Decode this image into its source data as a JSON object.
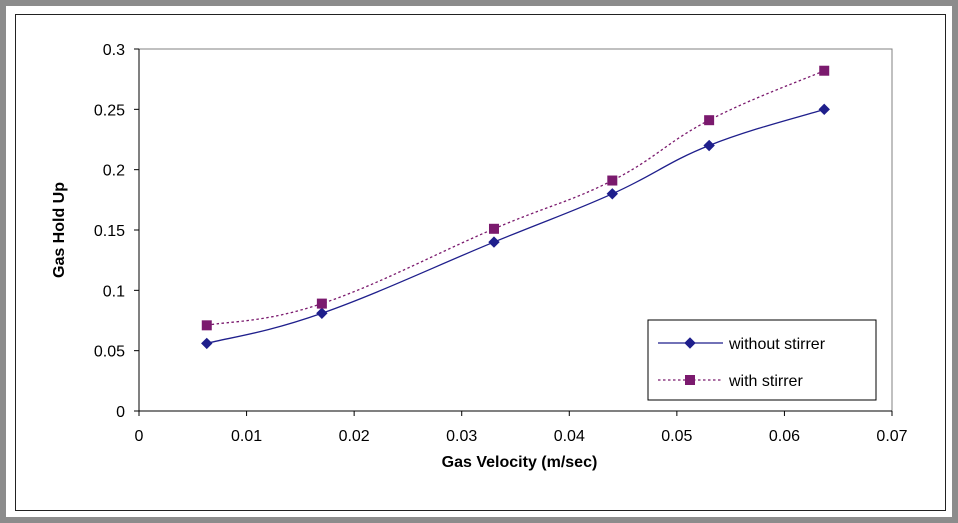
{
  "chart_data": {
    "type": "line",
    "title": "",
    "xlabel": "Gas Velocity (m/sec)",
    "ylabel": "Gas Hold Up",
    "xlim": [
      0,
      0.07
    ],
    "ylim": [
      0,
      0.3
    ],
    "xticks": [
      "0",
      "0.01",
      "0.02",
      "0.03",
      "0.04",
      "0.05",
      "0.06",
      "0.07"
    ],
    "yticks": [
      "0",
      "0.05",
      "0.1",
      "0.15",
      "0.2",
      "0.25",
      "0.3"
    ],
    "grid": false,
    "legend_position": "bottom-right",
    "series": [
      {
        "name": "without stirrer",
        "color": "#1f1f8c",
        "marker": "diamond",
        "line_style": "solid",
        "x": [
          0.0063,
          0.017,
          0.033,
          0.044,
          0.053,
          0.0637
        ],
        "y": [
          0.056,
          0.081,
          0.14,
          0.18,
          0.22,
          0.25
        ]
      },
      {
        "name": "with stirrer",
        "color": "#7b1a6e",
        "marker": "square",
        "line_style": "dotted",
        "x": [
          0.0063,
          0.017,
          0.033,
          0.044,
          0.053,
          0.0637
        ],
        "y": [
          0.071,
          0.089,
          0.151,
          0.191,
          0.241,
          0.282
        ]
      }
    ]
  }
}
